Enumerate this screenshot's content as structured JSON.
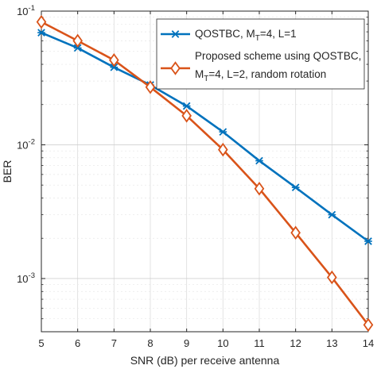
{
  "chart_data": {
    "type": "line",
    "title": "",
    "xlabel": "SNR (dB) per receive antenna",
    "ylabel": "BER",
    "xlim": [
      5,
      14
    ],
    "ylim": [
      0.0004,
      0.1
    ],
    "yscale": "log",
    "grid": true,
    "legend_position": "top-right",
    "x_ticks": [
      "5",
      "6",
      "7",
      "8",
      "9",
      "10",
      "11",
      "12",
      "13",
      "14"
    ],
    "y_ticks": [
      {
        "base": "10",
        "exp": "-3"
      },
      {
        "base": "10",
        "exp": "-2"
      },
      {
        "base": "10",
        "exp": "-1"
      }
    ],
    "x": [
      5,
      6,
      7,
      8,
      9,
      10,
      11,
      12,
      13,
      14
    ],
    "series": [
      {
        "name_parts": [
          "QOSTBC, M",
          "T",
          "=4, L=1"
        ],
        "color": "#0072BD",
        "marker": "x-star",
        "values": [
          0.069,
          0.053,
          0.038,
          0.028,
          0.0195,
          0.0125,
          0.0076,
          0.0048,
          0.003,
          0.0019
        ]
      },
      {
        "name_parts": [
          "Proposed scheme using QOSTBC,",
          "M",
          "T",
          "=4, L=2, random rotation"
        ],
        "color": "#D95319",
        "marker": "diamond",
        "values": [
          0.083,
          0.06,
          0.043,
          0.027,
          0.0165,
          0.0092,
          0.0047,
          0.0022,
          0.00102,
          0.00045
        ]
      }
    ]
  }
}
